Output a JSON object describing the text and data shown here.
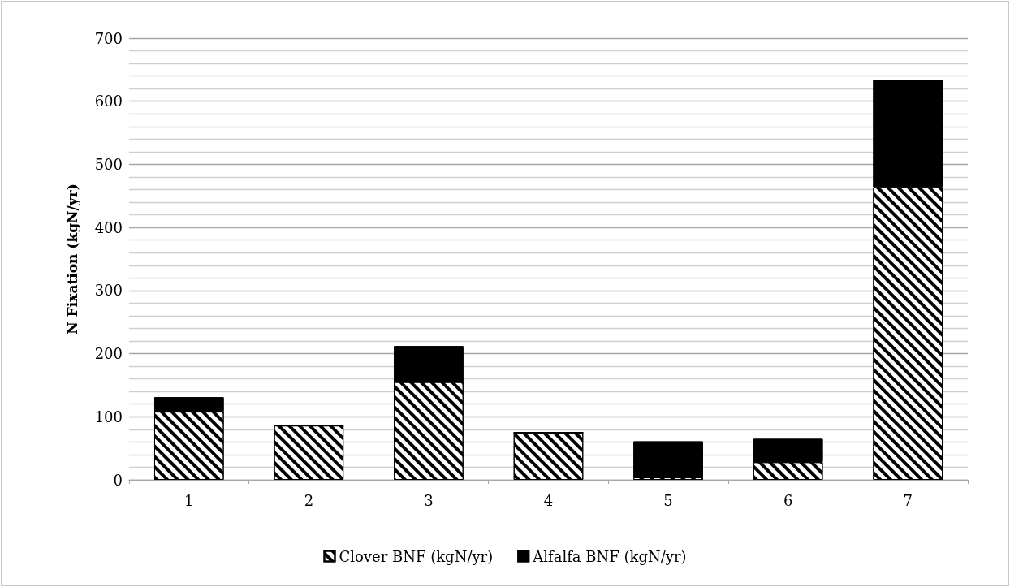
{
  "chart_data": {
    "type": "bar",
    "ylabel": "N Fixation (kgN/yr)",
    "categories": [
      "1",
      "2",
      "3",
      "4",
      "5",
      "6",
      "7"
    ],
    "stacked": true,
    "series": [
      {
        "name": "Clover BNF (kgN/yr)",
        "color": "#000000",
        "values": [
          108,
          86,
          155,
          75,
          4,
          28,
          464
        ]
      },
      {
        "name": "Alfalfa BNF (kgN/yr)",
        "color": "#000000",
        "values": [
          23,
          0,
          57,
          0,
          57,
          37,
          170
        ]
      }
    ],
    "ylim": [
      0,
      700
    ],
    "yticks": [
      0,
      100,
      200,
      300,
      400,
      500,
      600,
      700
    ],
    "grid": "y",
    "legend": "bottom"
  }
}
